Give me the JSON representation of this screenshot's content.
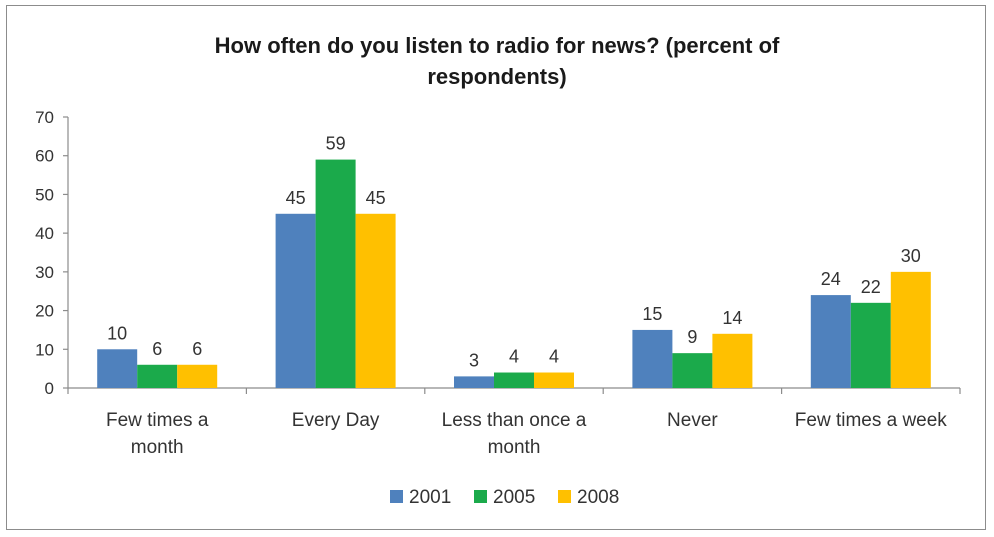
{
  "chart_data": {
    "type": "bar",
    "title_lines": [
      "How often do you listen to radio for news? (percent of",
      "respondents)"
    ],
    "categories": [
      [
        "Few times a",
        "month"
      ],
      [
        "Every Day"
      ],
      [
        "Less than once a",
        "month"
      ],
      [
        "Never"
      ],
      [
        "Few times a week"
      ]
    ],
    "series": [
      {
        "name": "2001",
        "color": "#4F81BD",
        "values": [
          10,
          45,
          3,
          15,
          24
        ]
      },
      {
        "name": "2005",
        "color": "#1BAA4B",
        "values": [
          6,
          59,
          4,
          9,
          22
        ]
      },
      {
        "name": "2008",
        "color": "#FFC000",
        "values": [
          6,
          45,
          4,
          14,
          30
        ]
      }
    ],
    "yticks": [
      0,
      10,
      20,
      30,
      40,
      50,
      60,
      70
    ],
    "ylim": [
      0,
      70
    ],
    "xlabel": "",
    "ylabel": "",
    "grid": false,
    "legend_position": "bottom"
  }
}
